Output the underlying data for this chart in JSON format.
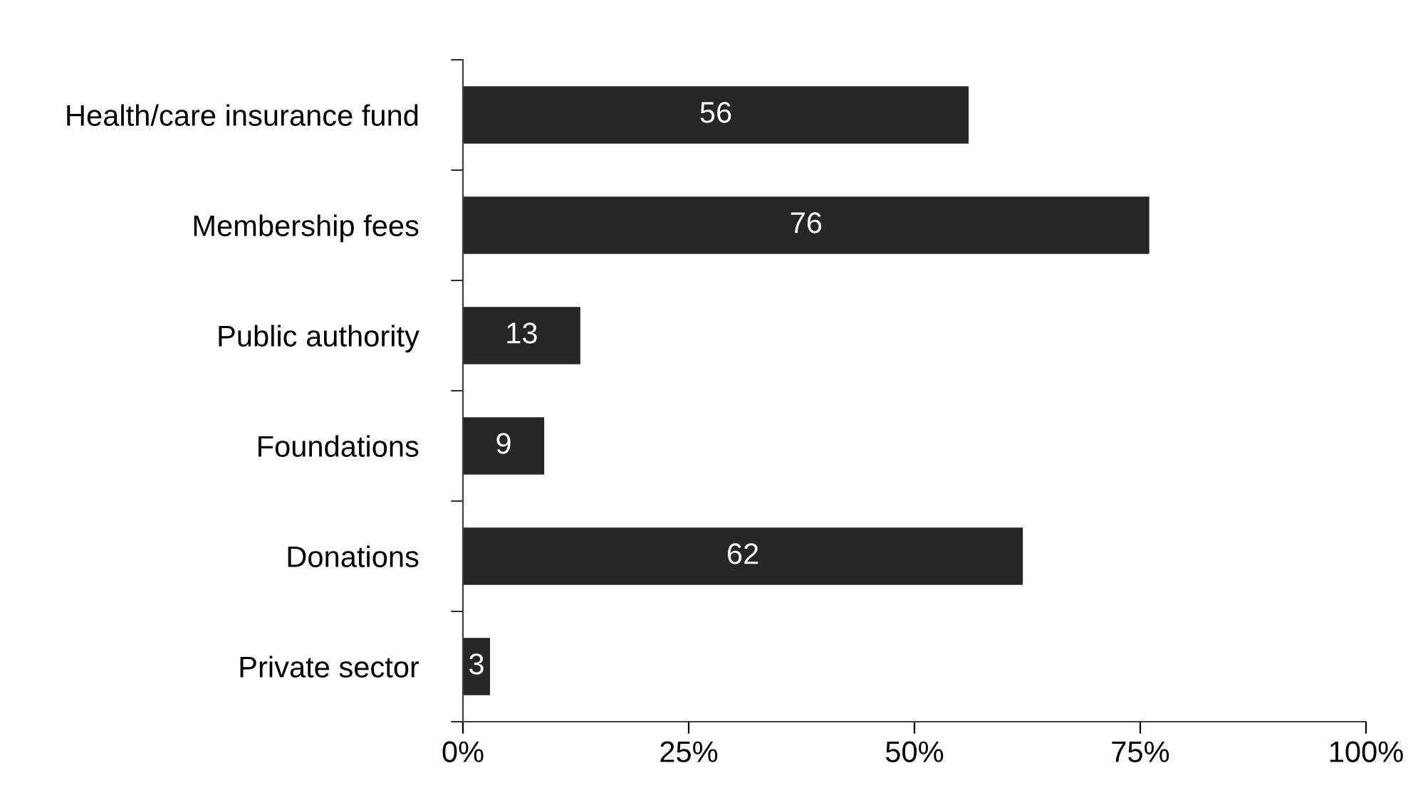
{
  "chart_data": {
    "type": "bar",
    "orientation": "horizontal",
    "categories": [
      "Health/care insurance fund",
      "Membership fees",
      "Public authority",
      "Foundations",
      "Donations",
      "Private sector"
    ],
    "values": [
      56,
      76,
      13,
      9,
      62,
      3
    ],
    "color": "#262626",
    "xlim": [
      0,
      100
    ],
    "xticks": [
      {
        "value": 0,
        "label": "0%"
      },
      {
        "value": 25,
        "label": "25%"
      },
      {
        "value": 50,
        "label": "50%"
      },
      {
        "value": 75,
        "label": "75%"
      },
      {
        "value": 100,
        "label": "100%"
      }
    ],
    "data_labels": true,
    "grid": false,
    "legend": false
  }
}
